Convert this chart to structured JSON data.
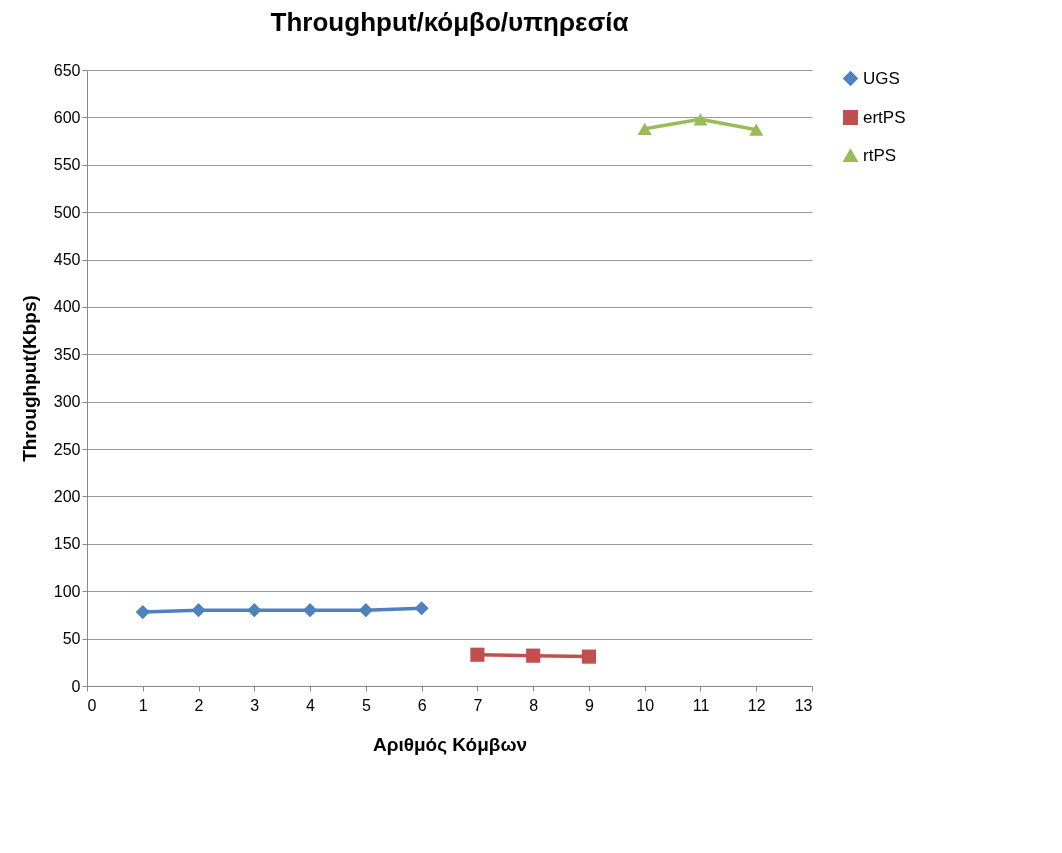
{
  "chart_data": {
    "type": "line",
    "title": "Throughput/κόμβο/υπηρεσία",
    "xlabel": "Αριθμός Κόμβων",
    "ylabel": "Throughput(Kbps)",
    "xlim": [
      0,
      13
    ],
    "xticks": [
      0,
      1,
      2,
      3,
      4,
      5,
      6,
      7,
      8,
      9,
      10,
      11,
      12,
      13
    ],
    "ylim": [
      0,
      650
    ],
    "yticks": [
      0,
      50,
      100,
      150,
      200,
      250,
      300,
      350,
      400,
      450,
      500,
      550,
      600,
      650
    ],
    "grid": "y",
    "legend": "right",
    "series": [
      {
        "name": "UGS",
        "color": "#4f81bd",
        "marker": "diamond",
        "x": [
          1,
          2,
          3,
          4,
          5,
          6
        ],
        "values": [
          78,
          80,
          80,
          80,
          80,
          82
        ]
      },
      {
        "name": "ertPS",
        "color": "#c0504d",
        "marker": "square",
        "x": [
          7,
          8,
          9
        ],
        "values": [
          33,
          32,
          31
        ]
      },
      {
        "name": "rtPS",
        "color": "#9bbb59",
        "marker": "triangle",
        "x": [
          10,
          11,
          12
        ],
        "values": [
          588,
          598,
          587
        ]
      }
    ]
  }
}
